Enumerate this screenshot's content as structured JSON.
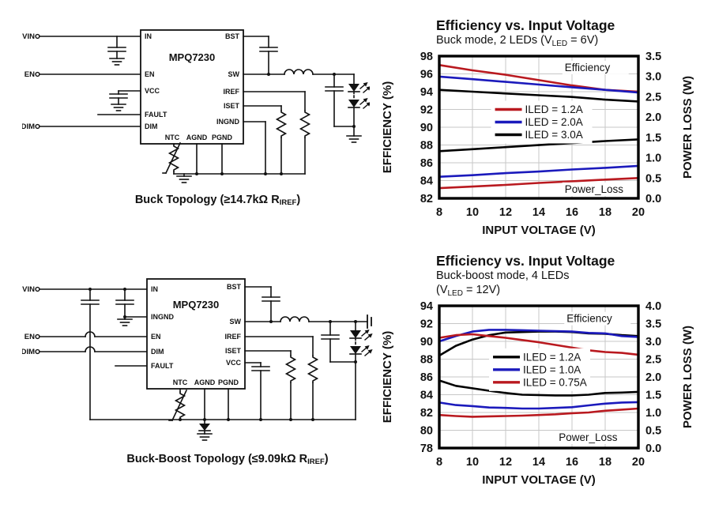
{
  "circuits": [
    {
      "name": "MPQ7230",
      "terminals": {
        "vin": "VIN",
        "en": "EN",
        "dim": "DIM"
      },
      "pins": {
        "in": "IN",
        "en": "EN",
        "vcc": "VCC",
        "fault": "FAULT",
        "dim": "DIM",
        "ntc": "NTC",
        "agnd": "AGND",
        "pgnd": "PGND",
        "bst": "BST",
        "sw": "SW",
        "iref": "IREF",
        "iset": "ISET",
        "ingnd": "INGND"
      },
      "caption": {
        "pre": "Buck Topology (≥14.7kΩ R",
        "sub": "IREF",
        "post": ")"
      }
    },
    {
      "name": "MPQ7230",
      "terminals": {
        "vin": "VIN",
        "en": "EN",
        "dim": "DIM"
      },
      "pins": {
        "in": "IN",
        "ingnd": "INGND",
        "en": "EN",
        "dim": "DIM",
        "fault": "FAULT",
        "ntc": "NTC",
        "agnd": "AGND",
        "pgnd": "PGND",
        "bst": "BST",
        "sw": "SW",
        "iref": "IREF",
        "iset": "ISET",
        "vcc": "VCC"
      },
      "caption": {
        "pre": "Buck-Boost Topology (≤9.09kΩ R",
        "sub": "IREF",
        "post": ")"
      }
    }
  ],
  "chart_data": [
    {
      "type": "line",
      "title": "Efficiency vs. Input Voltage",
      "subtitle_pre": "Buck mode, 2 LEDs (V",
      "subtitle_sub": "LED",
      "subtitle_post": " = 6V)",
      "xlabel": "INPUT VOLTAGE (V)",
      "ylabel": "EFFICIENCY (%)",
      "ylabel2": "POWER LOSS (W)",
      "xlim": [
        8,
        20
      ],
      "xticks": [
        8,
        10,
        12,
        14,
        16,
        18,
        20
      ],
      "ylim": [
        82,
        98
      ],
      "yticks": [
        98,
        96,
        94,
        92,
        90,
        88,
        86,
        84,
        82
      ],
      "y2lim": [
        0,
        3.5
      ],
      "y2ticks": [
        3.5,
        3.0,
        2.5,
        2.0,
        1.5,
        1.0,
        0.5,
        0.0
      ],
      "grid": true,
      "annotations": [
        {
          "text": "Efficiency",
          "fx": 0.63,
          "fy": 0.105
        },
        {
          "text": "Power_Loss",
          "fx": 0.63,
          "fy": 0.96
        }
      ],
      "legend": {
        "fx": 0.28,
        "fy": 0.375,
        "entries": [
          {
            "label": "ILED = 1.2A",
            "color": "#b9191f"
          },
          {
            "label": "ILED = 2.0A",
            "color": "#1b1abc"
          },
          {
            "label": "ILED = 3.0A",
            "color": "#000000"
          }
        ]
      },
      "series": [
        {
          "id": "efficiency-iled-1.2A",
          "axis": "left",
          "color": "#b9191f",
          "x": [
            8,
            10,
            12,
            14,
            16,
            18,
            20
          ],
          "y": [
            97.0,
            96.4,
            95.9,
            95.3,
            94.7,
            94.2,
            94.0
          ]
        },
        {
          "id": "efficiency-iled-2.0A",
          "axis": "left",
          "color": "#1b1abc",
          "x": [
            8,
            10,
            12,
            14,
            16,
            18,
            20
          ],
          "y": [
            95.7,
            95.4,
            95.1,
            94.8,
            94.5,
            94.2,
            93.9
          ]
        },
        {
          "id": "efficiency-iled-3.0A",
          "axis": "left",
          "color": "#000000",
          "x": [
            8,
            10,
            12,
            14,
            16,
            18,
            20
          ],
          "y": [
            94.2,
            94.0,
            93.8,
            93.6,
            93.4,
            93.1,
            92.9
          ]
        },
        {
          "id": "power-loss-iled-3.0A",
          "axis": "right",
          "color": "#000000",
          "x": [
            8,
            10,
            12,
            14,
            16,
            18,
            20
          ],
          "y": [
            1.16,
            1.21,
            1.26,
            1.31,
            1.36,
            1.41,
            1.45
          ]
        },
        {
          "id": "power-loss-iled-2.0A",
          "axis": "right",
          "color": "#1b1abc",
          "x": [
            8,
            10,
            12,
            14,
            16,
            18,
            20
          ],
          "y": [
            0.53,
            0.57,
            0.62,
            0.66,
            0.71,
            0.75,
            0.8
          ]
        },
        {
          "id": "power-loss-iled-1.2A",
          "axis": "right",
          "color": "#b9191f",
          "x": [
            8,
            10,
            12,
            14,
            16,
            18,
            20
          ],
          "y": [
            0.25,
            0.29,
            0.33,
            0.38,
            0.42,
            0.46,
            0.5
          ]
        }
      ]
    },
    {
      "type": "line",
      "title": "Efficiency vs. Input Voltage",
      "subtitle_line1": "Buck-boost mode, 4 LEDs",
      "subtitle2_pre": "(V",
      "subtitle2_sub": "LED",
      "subtitle2_post": " = 12V)",
      "xlabel": "INPUT VOLTAGE (V)",
      "ylabel": "EFFICIENCY (%)",
      "ylabel2": "POWER LOSS (W)",
      "xlim": [
        8,
        20
      ],
      "xticks": [
        8,
        10,
        12,
        14,
        16,
        18,
        20
      ],
      "ylim": [
        78,
        94
      ],
      "yticks": [
        94,
        92,
        90,
        88,
        86,
        84,
        82,
        80,
        78
      ],
      "y2lim": [
        0,
        4.0
      ],
      "y2ticks": [
        4.0,
        3.5,
        3.0,
        2.5,
        2.0,
        1.5,
        1.0,
        0.5,
        0.0
      ],
      "grid": true,
      "annotations": [
        {
          "text": "Efficiency",
          "fx": 0.64,
          "fy": 0.115
        },
        {
          "text": "Power_Loss",
          "fx": 0.6,
          "fy": 0.95
        }
      ],
      "legend": {
        "fx": 0.27,
        "fy": 0.36,
        "entries": [
          {
            "label": "ILED = 1.2A",
            "color": "#000000"
          },
          {
            "label": "ILED = 1.0A",
            "color": "#1b1abc"
          },
          {
            "label": "ILED = 0.75A",
            "color": "#b9191f"
          }
        ]
      },
      "series": [
        {
          "id": "efficiency-iled-1.2A",
          "axis": "left",
          "color": "#000000",
          "x": [
            8,
            9,
            10,
            11,
            12,
            13,
            14,
            15,
            16,
            17,
            18,
            19,
            20
          ],
          "y": [
            88.4,
            89.5,
            90.2,
            90.7,
            91.0,
            91.05,
            91.1,
            91.1,
            91.05,
            90.9,
            90.85,
            90.7,
            90.6
          ]
        },
        {
          "id": "efficiency-iled-1.0A",
          "axis": "left",
          "color": "#1b1abc",
          "x": [
            8,
            9,
            10,
            11,
            12,
            13,
            14,
            15,
            16,
            17,
            18,
            19,
            20
          ],
          "y": [
            90.0,
            90.6,
            91.1,
            91.3,
            91.3,
            91.25,
            91.2,
            91.15,
            91.1,
            90.95,
            90.9,
            90.6,
            90.5
          ]
        },
        {
          "id": "efficiency-iled-0.75A",
          "axis": "left",
          "color": "#b9191f",
          "x": [
            8,
            9,
            10,
            11,
            12,
            13,
            14,
            15,
            16,
            17,
            18,
            19,
            20
          ],
          "y": [
            90.4,
            90.7,
            90.8,
            90.6,
            90.4,
            90.15,
            89.9,
            89.6,
            89.3,
            89.0,
            88.8,
            88.7,
            88.5
          ]
        },
        {
          "id": "power-loss-iled-1.2A",
          "axis": "right",
          "color": "#000000",
          "x": [
            8,
            9,
            10,
            11,
            12,
            13,
            14,
            15,
            16,
            17,
            18,
            19,
            20
          ],
          "y": [
            1.9,
            1.75,
            1.68,
            1.61,
            1.55,
            1.5,
            1.49,
            1.48,
            1.48,
            1.5,
            1.55,
            1.56,
            1.58
          ]
        },
        {
          "id": "power-loss-iled-1.0A",
          "axis": "right",
          "color": "#1b1abc",
          "x": [
            8,
            9,
            10,
            11,
            12,
            13,
            14,
            15,
            16,
            17,
            18,
            19,
            20
          ],
          "y": [
            1.28,
            1.21,
            1.18,
            1.14,
            1.13,
            1.11,
            1.11,
            1.13,
            1.15,
            1.2,
            1.25,
            1.28,
            1.29
          ]
        },
        {
          "id": "power-loss-iled-0.75A",
          "axis": "right",
          "color": "#b9191f",
          "x": [
            8,
            9,
            10,
            11,
            12,
            13,
            14,
            15,
            16,
            17,
            18,
            19,
            20
          ],
          "y": [
            0.93,
            0.9,
            0.88,
            0.89,
            0.9,
            0.91,
            0.93,
            0.95,
            0.98,
            1.0,
            1.05,
            1.08,
            1.11
          ]
        }
      ]
    }
  ]
}
